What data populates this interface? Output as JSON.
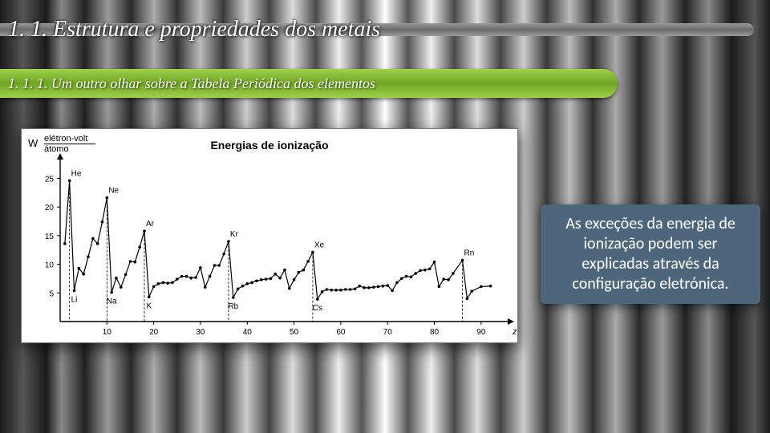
{
  "title": "1. 1. Estrutura e propriedades dos metais",
  "subtitle": "1. 1. 1. Um outro olhar sobre a Tabela Periódica dos elementos",
  "callout": "As exceções da energia de ionização podem ser explicadas através da configuração eletrónica.",
  "chart": {
    "type": "line-scatter",
    "title": "Energias de ionização",
    "y_symbol": "W",
    "y_unit_top": "elétron-volt",
    "y_unit_bottom": "átomo",
    "x_label": "z",
    "xlim": [
      0,
      95
    ],
    "ylim": [
      0,
      28
    ],
    "xtick_step": 10,
    "yticks": [
      5,
      10,
      15,
      20,
      25
    ],
    "background_color": "#ffffff",
    "axis_color": "#000000",
    "line_color": "#000000",
    "point_color": "#000000",
    "line_width": 1.2,
    "point_radius": 1.8,
    "title_fontsize": 14,
    "tick_fontsize": 10,
    "element_labels": [
      {
        "z": 2,
        "y": 24.6,
        "label": "He"
      },
      {
        "z": 3,
        "y": 5.4,
        "label": "Li"
      },
      {
        "z": 10,
        "y": 21.6,
        "label": "Ne"
      },
      {
        "z": 11,
        "y": 5.1,
        "label": "Na"
      },
      {
        "z": 18,
        "y": 15.8,
        "label": "Ar"
      },
      {
        "z": 19,
        "y": 4.3,
        "label": "K"
      },
      {
        "z": 36,
        "y": 14.0,
        "label": "Kr"
      },
      {
        "z": 37,
        "y": 4.2,
        "label": "Rb"
      },
      {
        "z": 54,
        "y": 12.1,
        "label": "Xe"
      },
      {
        "z": 55,
        "y": 3.9,
        "label": "Cs"
      },
      {
        "z": 86,
        "y": 10.7,
        "label": "Rn"
      }
    ],
    "dashed_verticals": [
      2,
      10,
      18,
      36,
      54,
      86
    ],
    "series": [
      {
        "z": 1,
        "y": 13.6
      },
      {
        "z": 2,
        "y": 24.6
      },
      {
        "z": 3,
        "y": 5.4
      },
      {
        "z": 4,
        "y": 9.3
      },
      {
        "z": 5,
        "y": 8.3
      },
      {
        "z": 6,
        "y": 11.3
      },
      {
        "z": 7,
        "y": 14.5
      },
      {
        "z": 8,
        "y": 13.6
      },
      {
        "z": 9,
        "y": 17.4
      },
      {
        "z": 10,
        "y": 21.6
      },
      {
        "z": 11,
        "y": 5.1
      },
      {
        "z": 12,
        "y": 7.6
      },
      {
        "z": 13,
        "y": 6.0
      },
      {
        "z": 14,
        "y": 8.2
      },
      {
        "z": 15,
        "y": 10.5
      },
      {
        "z": 16,
        "y": 10.4
      },
      {
        "z": 17,
        "y": 13.0
      },
      {
        "z": 18,
        "y": 15.8
      },
      {
        "z": 19,
        "y": 4.3
      },
      {
        "z": 20,
        "y": 6.1
      },
      {
        "z": 21,
        "y": 6.6
      },
      {
        "z": 22,
        "y": 6.8
      },
      {
        "z": 23,
        "y": 6.7
      },
      {
        "z": 24,
        "y": 6.8
      },
      {
        "z": 25,
        "y": 7.4
      },
      {
        "z": 26,
        "y": 7.9
      },
      {
        "z": 27,
        "y": 7.9
      },
      {
        "z": 28,
        "y": 7.6
      },
      {
        "z": 29,
        "y": 7.7
      },
      {
        "z": 30,
        "y": 9.4
      },
      {
        "z": 31,
        "y": 6.0
      },
      {
        "z": 32,
        "y": 7.9
      },
      {
        "z": 33,
        "y": 9.8
      },
      {
        "z": 34,
        "y": 9.8
      },
      {
        "z": 35,
        "y": 11.8
      },
      {
        "z": 36,
        "y": 14.0
      },
      {
        "z": 37,
        "y": 4.2
      },
      {
        "z": 38,
        "y": 5.7
      },
      {
        "z": 39,
        "y": 6.2
      },
      {
        "z": 40,
        "y": 6.6
      },
      {
        "z": 41,
        "y": 6.8
      },
      {
        "z": 42,
        "y": 7.1
      },
      {
        "z": 43,
        "y": 7.3
      },
      {
        "z": 44,
        "y": 7.4
      },
      {
        "z": 45,
        "y": 7.5
      },
      {
        "z": 46,
        "y": 8.3
      },
      {
        "z": 47,
        "y": 7.6
      },
      {
        "z": 48,
        "y": 9.0
      },
      {
        "z": 49,
        "y": 5.8
      },
      {
        "z": 50,
        "y": 7.3
      },
      {
        "z": 51,
        "y": 8.6
      },
      {
        "z": 52,
        "y": 9.0
      },
      {
        "z": 53,
        "y": 10.5
      },
      {
        "z": 54,
        "y": 12.1
      },
      {
        "z": 55,
        "y": 3.9
      },
      {
        "z": 56,
        "y": 5.2
      },
      {
        "z": 57,
        "y": 5.6
      },
      {
        "z": 58,
        "y": 5.5
      },
      {
        "z": 59,
        "y": 5.5
      },
      {
        "z": 60,
        "y": 5.5
      },
      {
        "z": 61,
        "y": 5.6
      },
      {
        "z": 62,
        "y": 5.6
      },
      {
        "z": 63,
        "y": 5.7
      },
      {
        "z": 64,
        "y": 6.2
      },
      {
        "z": 65,
        "y": 5.9
      },
      {
        "z": 66,
        "y": 5.9
      },
      {
        "z": 67,
        "y": 6.0
      },
      {
        "z": 68,
        "y": 6.1
      },
      {
        "z": 69,
        "y": 6.2
      },
      {
        "z": 70,
        "y": 6.3
      },
      {
        "z": 71,
        "y": 5.4
      },
      {
        "z": 72,
        "y": 6.8
      },
      {
        "z": 73,
        "y": 7.5
      },
      {
        "z": 74,
        "y": 7.9
      },
      {
        "z": 75,
        "y": 7.8
      },
      {
        "z": 76,
        "y": 8.4
      },
      {
        "z": 77,
        "y": 8.9
      },
      {
        "z": 78,
        "y": 9.0
      },
      {
        "z": 79,
        "y": 9.2
      },
      {
        "z": 80,
        "y": 10.4
      },
      {
        "z": 81,
        "y": 6.1
      },
      {
        "z": 82,
        "y": 7.4
      },
      {
        "z": 83,
        "y": 7.3
      },
      {
        "z": 84,
        "y": 8.4
      },
      {
        "z": 86,
        "y": 10.7
      },
      {
        "z": 87,
        "y": 4.0
      },
      {
        "z": 88,
        "y": 5.3
      },
      {
        "z": 90,
        "y": 6.1
      },
      {
        "z": 92,
        "y": 6.2
      }
    ]
  },
  "colors": {
    "title_stripe": "#7a7a7a",
    "subtitle_bg_top": "#9fd24a",
    "subtitle_bg_mid": "#6fa522",
    "callout_bg": "#4e667c",
    "callout_text": "#ffffff",
    "title_text": "#ffffff"
  }
}
